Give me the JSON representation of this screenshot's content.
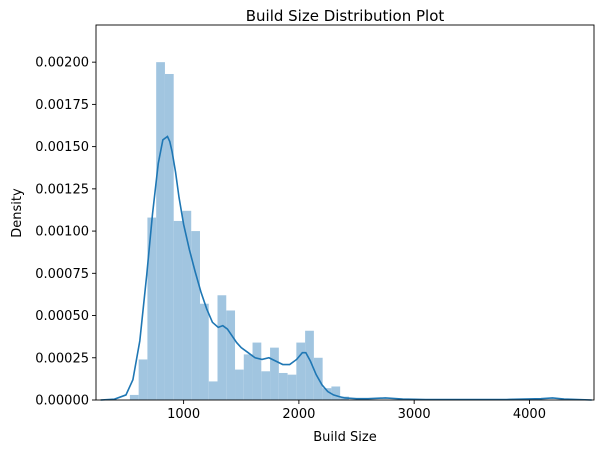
{
  "chart_data": {
    "type": "bar",
    "title": "Build Size Distribution Plot",
    "xlabel": "Build Size",
    "ylabel": "Density",
    "xlim": [
      240,
      4560
    ],
    "ylim": [
      0,
      0.00222
    ],
    "xticks": [
      1000,
      2000,
      3000,
      4000
    ],
    "xtick_labels": [
      "1000",
      "2000",
      "3000",
      "4000"
    ],
    "yticks": [
      0,
      0.00025,
      0.0005,
      0.00075,
      0.001,
      0.00125,
      0.0015,
      0.00175,
      0.002
    ],
    "ytick_labels": [
      "0.00000",
      "0.00025",
      "0.00050",
      "0.00075",
      "0.00100",
      "0.00125",
      "0.00150",
      "0.00175",
      "0.00200"
    ],
    "grid": false,
    "colors": {
      "bars": "#a1c5e0",
      "kde": "#1f77b4",
      "axes": "#000000"
    },
    "histogram": {
      "bin_width": 76,
      "bins": [
        {
          "x0": 534,
          "x1": 610,
          "density": 3e-05
        },
        {
          "x0": 610,
          "x1": 686,
          "density": 0.00024
        },
        {
          "x0": 686,
          "x1": 762,
          "density": 0.00108
        },
        {
          "x0": 762,
          "x1": 838,
          "density": 0.002
        },
        {
          "x0": 838,
          "x1": 914,
          "density": 0.00193
        },
        {
          "x0": 914,
          "x1": 990,
          "density": 0.00106
        },
        {
          "x0": 990,
          "x1": 1066,
          "density": 0.00112
        },
        {
          "x0": 1066,
          "x1": 1142,
          "density": 0.001
        },
        {
          "x0": 1142,
          "x1": 1218,
          "density": 0.00057
        },
        {
          "x0": 1218,
          "x1": 1294,
          "density": 0.00011
        },
        {
          "x0": 1294,
          "x1": 1370,
          "density": 0.00062
        },
        {
          "x0": 1370,
          "x1": 1446,
          "density": 0.00053
        },
        {
          "x0": 1446,
          "x1": 1522,
          "density": 0.00018
        },
        {
          "x0": 1522,
          "x1": 1598,
          "density": 0.00027
        },
        {
          "x0": 1598,
          "x1": 1674,
          "density": 0.00034
        },
        {
          "x0": 1674,
          "x1": 1750,
          "density": 0.00017
        },
        {
          "x0": 1750,
          "x1": 1826,
          "density": 0.00031
        },
        {
          "x0": 1826,
          "x1": 1902,
          "density": 0.00016
        },
        {
          "x0": 1902,
          "x1": 1978,
          "density": 0.00015
        },
        {
          "x0": 1978,
          "x1": 2054,
          "density": 0.00034
        },
        {
          "x0": 2054,
          "x1": 2130,
          "density": 0.00041
        },
        {
          "x0": 2130,
          "x1": 2206,
          "density": 0.00025
        },
        {
          "x0": 2206,
          "x1": 2282,
          "density": 7e-05
        },
        {
          "x0": 2282,
          "x1": 2358,
          "density": 8e-05
        },
        {
          "x0": 2358,
          "x1": 2434,
          "density": 2e-05
        }
      ]
    },
    "kde": {
      "x": [
        280,
        400,
        500,
        560,
        620,
        680,
        730,
        780,
        820,
        860,
        880,
        900,
        930,
        960,
        1000,
        1050,
        1100,
        1150,
        1200,
        1250,
        1300,
        1340,
        1380,
        1420,
        1460,
        1500,
        1560,
        1620,
        1680,
        1740,
        1800,
        1860,
        1920,
        1980,
        2030,
        2060,
        2100,
        2150,
        2200,
        2250,
        2300,
        2350,
        2400,
        2500,
        2600,
        2750,
        2900,
        3100,
        3400,
        3800,
        4100,
        4200,
        4300,
        4540
      ],
      "y": [
        0.0,
        5e-06,
        3e-05,
        0.00012,
        0.00035,
        0.00074,
        0.0011,
        0.0014,
        0.00154,
        0.00156,
        0.00153,
        0.00147,
        0.00135,
        0.0012,
        0.00104,
        0.00089,
        0.00076,
        0.00064,
        0.00054,
        0.00046,
        0.00043,
        0.00044,
        0.00042,
        0.00038,
        0.00034,
        0.00031,
        0.00028,
        0.00025,
        0.00024,
        0.00025,
        0.00023,
        0.00021,
        0.00021,
        0.00024,
        0.00028,
        0.00028,
        0.00023,
        0.00015,
        9e-05,
        5e-05,
        3e-05,
        2e-05,
        1.2e-05,
        8e-06,
        8e-06,
        1.2e-05,
        6e-06,
        3e-06,
        3e-06,
        3e-06,
        8e-06,
        1.2e-05,
        6e-06,
        0.0
      ]
    }
  }
}
